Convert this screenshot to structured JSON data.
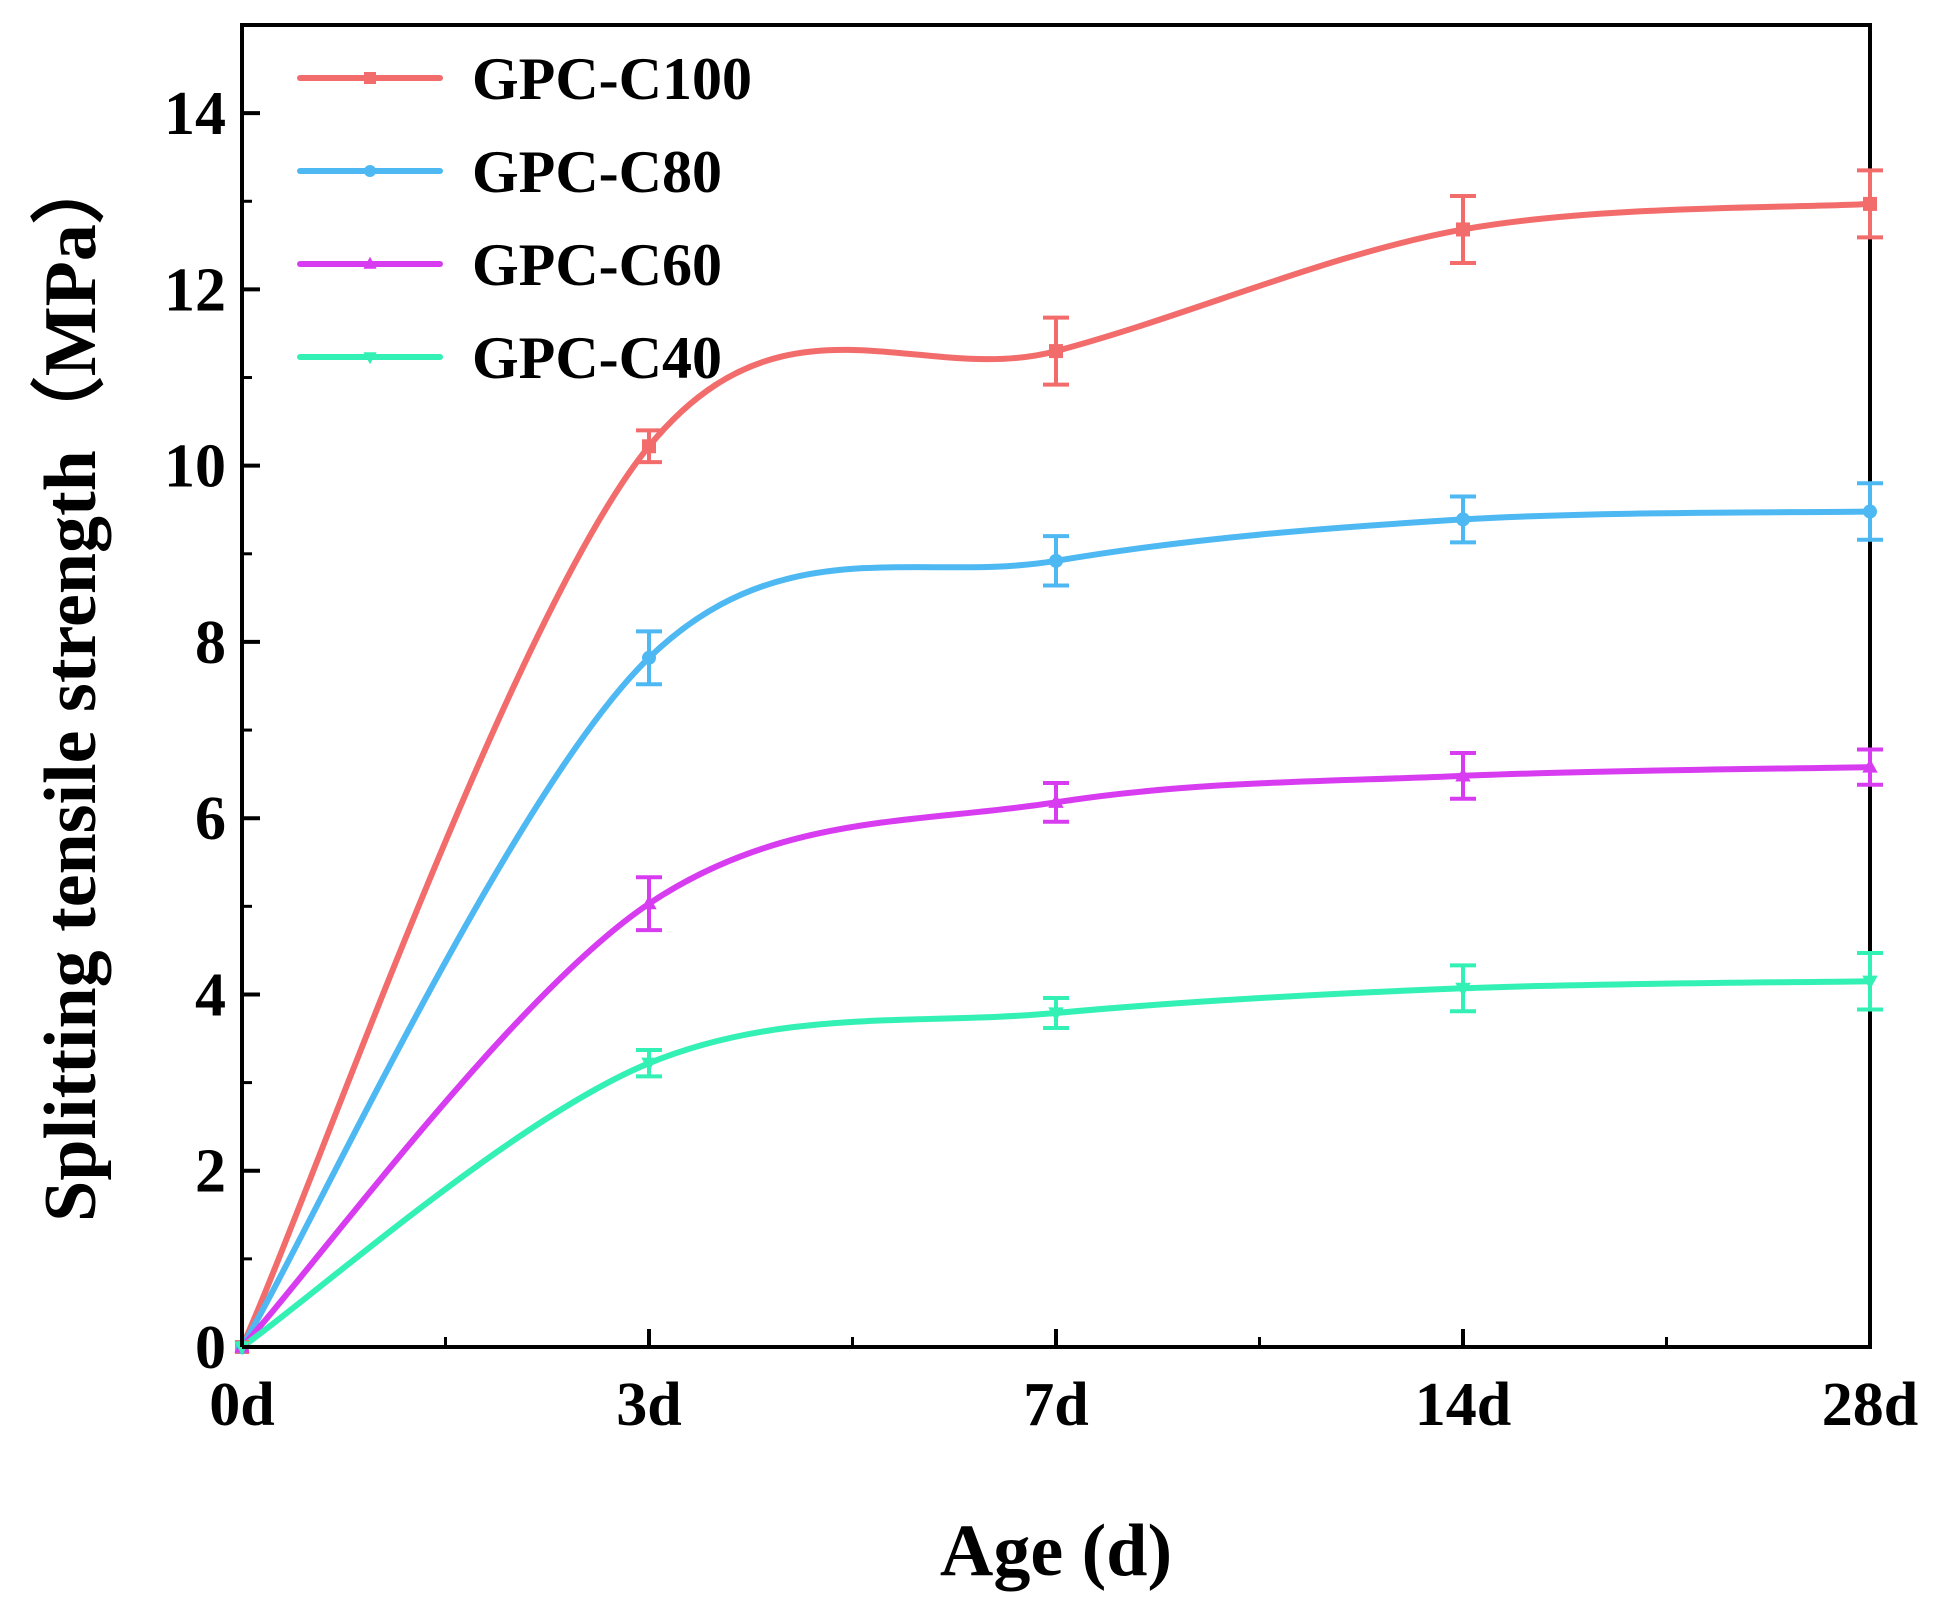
{
  "chart_data": {
    "type": "line",
    "title": "",
    "xlabel": "Age (d)",
    "ylabel": "Splitting tensile strength（MPa）",
    "categories": [
      "0d",
      "3d",
      "7d",
      "14d",
      "28d"
    ],
    "ylim": [
      0,
      15
    ],
    "yticks": [
      0,
      2,
      4,
      6,
      8,
      10,
      12,
      14
    ],
    "ytick_labels": [
      "0",
      "2",
      "4",
      "6",
      "8",
      "10",
      "12",
      "14"
    ],
    "grid": false,
    "legend_position": "top-left",
    "series": [
      {
        "name": "GPC-C100",
        "color": "#F26C6C",
        "marker": "square",
        "values": [
          0,
          10.22,
          11.3,
          12.68,
          12.97
        ],
        "errors": [
          0,
          0.18,
          0.38,
          0.38,
          0.38
        ]
      },
      {
        "name": "GPC-C80",
        "color": "#4DB8F2",
        "marker": "circle",
        "values": [
          0,
          7.82,
          8.92,
          9.39,
          9.48
        ],
        "errors": [
          0,
          0.3,
          0.28,
          0.26,
          0.32
        ]
      },
      {
        "name": "GPC-C60",
        "color": "#D83CF0",
        "marker": "triangle-up",
        "values": [
          0,
          5.03,
          6.18,
          6.48,
          6.58
        ],
        "errors": [
          0,
          0.3,
          0.22,
          0.26,
          0.2
        ]
      },
      {
        "name": "GPC-C40",
        "color": "#33F0B4",
        "marker": "triangle-down",
        "values": [
          0,
          3.22,
          3.79,
          4.07,
          4.15
        ],
        "errors": [
          0,
          0.15,
          0.17,
          0.26,
          0.32
        ]
      }
    ]
  }
}
